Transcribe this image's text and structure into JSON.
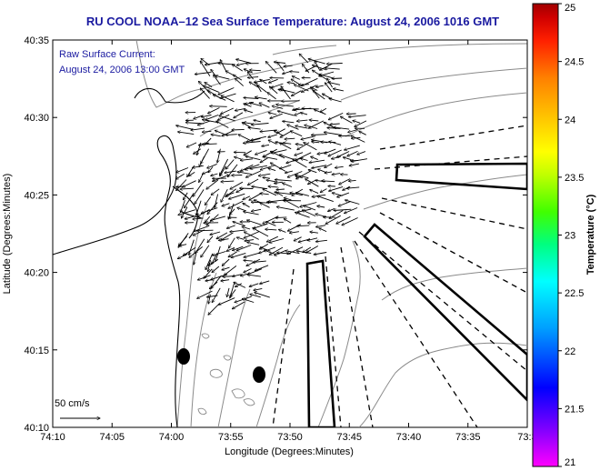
{
  "map": {
    "title": "RU COOL  NOAA–12  Sea Surface Temperature:  August 24, 2006 1016 GMT",
    "inset_line1": "Raw Surface Current:",
    "inset_line2": "August 24, 2006 13:00 GMT",
    "scale_label": "50 cm/s",
    "x_label": "Longitude (Degrees:Minutes)",
    "y_label": "Latitude (Degrees:Minutes)",
    "x_ticks": [
      "74:10",
      "74:05",
      "74:00",
      "73:55",
      "73:50",
      "73:45",
      "73:40",
      "73:35",
      "73:3"
    ],
    "y_ticks": [
      "40:35",
      "40:30",
      "40:25",
      "40:20",
      "40:15",
      "40:10"
    ],
    "colorbar": {
      "label": "Temperature (°C)",
      "ticks": [
        "25",
        "24.5",
        "24",
        "23.5",
        "23",
        "22.5",
        "22",
        "21.5",
        "21"
      ],
      "range": [
        21,
        25
      ],
      "colors": [
        "#ff00ff",
        "#8000ff",
        "#0000ff",
        "#00a0ff",
        "#00ffff",
        "#00ff80",
        "#40ff00",
        "#c0ff00",
        "#ffff00",
        "#ffc000",
        "#ff8000",
        "#ff2000",
        "#d00000",
        "#a00000"
      ]
    },
    "colors": {
      "title": "#1a1aa0",
      "coast": "#000000",
      "bathymetry": "#8a8a8a",
      "vectors": "#000000"
    }
  }
}
